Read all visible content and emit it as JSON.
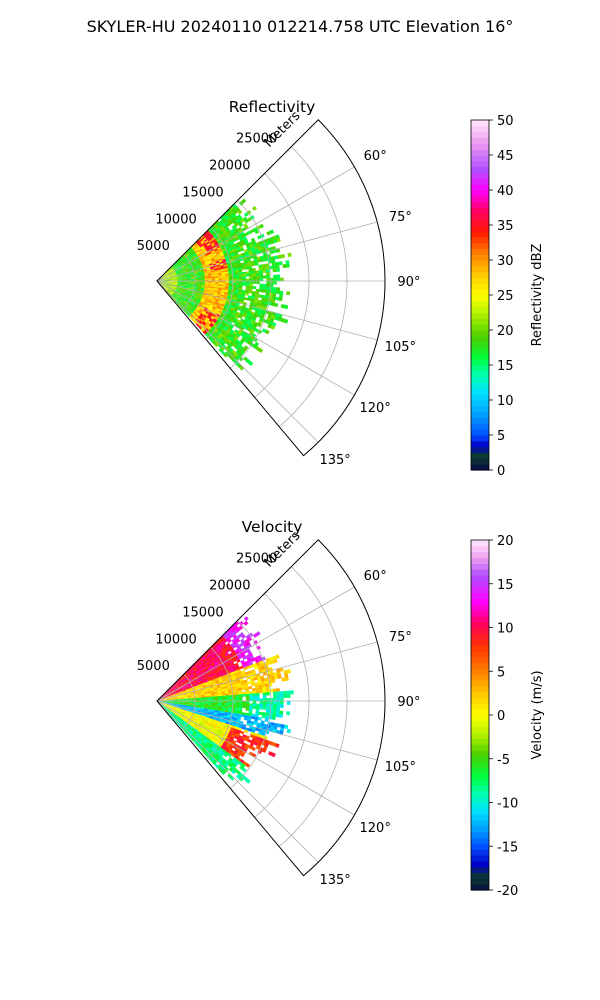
{
  "figure": {
    "title": "SKYLER-HU  20240110  012214.758 UTC Elevation 16°"
  },
  "chart_data": [
    {
      "type": "heatmap",
      "projection": "polar-sector",
      "title": "Reflectivity",
      "r_axis_label": "Meters",
      "r_ticks": [
        5000,
        10000,
        15000,
        20000,
        25000
      ],
      "r_tick_labels": [
        "5000",
        "10000",
        "15000",
        "20000",
        "25000"
      ],
      "rlim": [
        0,
        30000
      ],
      "theta_ticks": [
        60,
        75,
        90,
        105,
        120,
        135
      ],
      "theta_tick_labels": [
        "60°",
        "75°",
        "90°",
        "105°",
        "120°",
        "135°"
      ],
      "theta_range_deg": [
        45,
        140
      ],
      "grid": true,
      "data_extent": {
        "azimuth_deg": [
          45,
          138
        ],
        "range_m": [
          0,
          16500
        ]
      },
      "colorbar": {
        "label": "Reflectivity dBZ",
        "range": [
          0,
          50
        ],
        "ticks": [
          0,
          5,
          10,
          15,
          20,
          25,
          30,
          35,
          40,
          45,
          50
        ]
      },
      "observed_field": [
        {
          "feature": "broad echo field",
          "value": 18,
          "units": "dBZ"
        },
        {
          "feature": "enhanced band",
          "range_m": [
            6000,
            9000
          ],
          "value": 28,
          "units": "dBZ"
        },
        {
          "feature": "localized maxima",
          "range_m": [
            7000,
            9000
          ],
          "value": 35,
          "units": "dBZ"
        }
      ]
    },
    {
      "type": "heatmap",
      "projection": "polar-sector",
      "title": "Velocity",
      "r_axis_label": "Meters",
      "r_ticks": [
        5000,
        10000,
        15000,
        20000,
        25000
      ],
      "r_tick_labels": [
        "5000",
        "10000",
        "15000",
        "20000",
        "25000"
      ],
      "rlim": [
        0,
        30000
      ],
      "theta_ticks": [
        60,
        75,
        90,
        105,
        120,
        135
      ],
      "theta_tick_labels": [
        "60°",
        "75°",
        "90°",
        "105°",
        "120°",
        "135°"
      ],
      "theta_range_deg": [
        45,
        140
      ],
      "grid": true,
      "data_extent": {
        "azimuth_deg": [
          45,
          138
        ],
        "range_m": [
          0,
          16500
        ]
      },
      "colorbar": {
        "label": "Velocity (m/s)",
        "range": [
          -20,
          20
        ],
        "ticks": [
          -20,
          -15,
          -10,
          -5,
          0,
          5,
          10,
          15,
          20
        ]
      },
      "observed_field": [
        {
          "azimuth_deg": [
            45,
            68
          ],
          "value": 10,
          "units": "m/s"
        },
        {
          "azimuth_deg": [
            68,
            85
          ],
          "value": 2,
          "units": "m/s"
        },
        {
          "azimuth_deg": [
            85,
            98
          ],
          "value": -6,
          "units": "m/s"
        },
        {
          "azimuth_deg": [
            98,
            108
          ],
          "value": -12,
          "units": "m/s"
        },
        {
          "azimuth_deg": [
            108,
            125
          ],
          "value": 0,
          "units": "m/s"
        },
        {
          "azimuth_deg": [
            125,
            138
          ],
          "value": -8,
          "units": "m/s"
        }
      ]
    }
  ],
  "colormaps": {
    "reflectivity": [
      [
        0,
        "#0a0a4a"
      ],
      [
        2,
        "#0b3b2a"
      ],
      [
        3.5,
        "#0000c8"
      ],
      [
        5,
        "#0050ff"
      ],
      [
        8,
        "#00a0ff"
      ],
      [
        11,
        "#00e0ff"
      ],
      [
        13.5,
        "#00ffb4"
      ],
      [
        16,
        "#00ff40"
      ],
      [
        19,
        "#4ad000"
      ],
      [
        22,
        "#a6ef00"
      ],
      [
        25,
        "#ffff00"
      ],
      [
        28,
        "#ffc800"
      ],
      [
        31,
        "#ff8000"
      ],
      [
        34,
        "#ff1a00"
      ],
      [
        37,
        "#ff0060"
      ],
      [
        40,
        "#ff00ff"
      ],
      [
        43,
        "#b050ff"
      ],
      [
        47,
        "#f0a0f0"
      ],
      [
        50,
        "#ffe8ff"
      ]
    ],
    "velocity": [
      [
        -20,
        "#0a0a4a"
      ],
      [
        -18.5,
        "#0b3b2a"
      ],
      [
        -17,
        "#0000c8"
      ],
      [
        -15,
        "#0050ff"
      ],
      [
        -13,
        "#00a0ff"
      ],
      [
        -11,
        "#00e0ff"
      ],
      [
        -9,
        "#00ffb4"
      ],
      [
        -7,
        "#00ff40"
      ],
      [
        -4.5,
        "#4ad000"
      ],
      [
        -2.5,
        "#a6ef00"
      ],
      [
        0,
        "#ffff00"
      ],
      [
        2.5,
        "#ffc800"
      ],
      [
        5,
        "#ff8000"
      ],
      [
        8,
        "#ff3000"
      ],
      [
        10.5,
        "#ff0060"
      ],
      [
        13,
        "#ff00ff"
      ],
      [
        16,
        "#b050ff"
      ],
      [
        18,
        "#f0a0f0"
      ],
      [
        20,
        "#ffe8ff"
      ]
    ]
  }
}
